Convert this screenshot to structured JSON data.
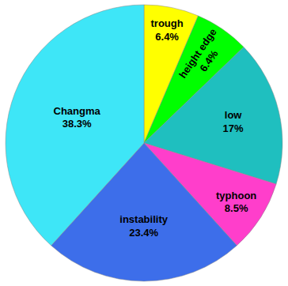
{
  "chart_data": {
    "type": "pie",
    "categories": [
      "trough",
      "height edge",
      "low",
      "typhoon",
      "instability",
      "Changma"
    ],
    "values": [
      6.4,
      6.4,
      17,
      8.5,
      23.4,
      38.3
    ],
    "value_labels": [
      "6.4%",
      "6.4%",
      "17%",
      "8.5%",
      "23.4%",
      "38.3%"
    ],
    "colors": [
      "#ffff00",
      "#00ff00",
      "#1fbfbf",
      "#ff3ecb",
      "#3d6eea",
      "#3ee6f7"
    ],
    "data_labels": true
  }
}
